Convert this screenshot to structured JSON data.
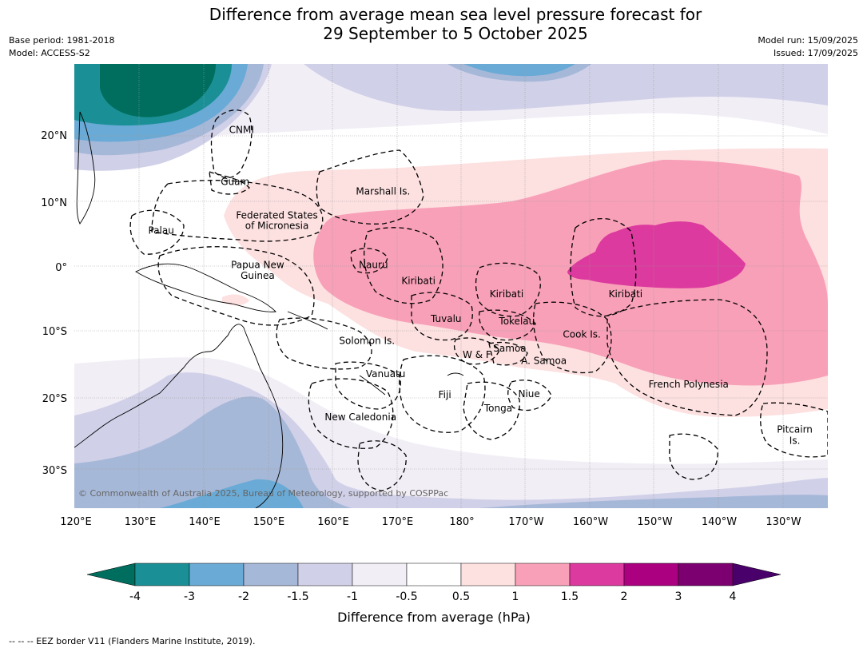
{
  "title": {
    "line1": "Difference from average mean sea level pressure forecast for",
    "line2": "29 September to 5 October 2025"
  },
  "meta": {
    "base_period": "Base period: 1981-2018",
    "model": "Model: ACCESS-S2",
    "model_run": "Model run: 15/09/2025",
    "issued": "Issued: 17/09/2025"
  },
  "map": {
    "lon_labels": [
      "120°E",
      "130°E",
      "140°E",
      "150°E",
      "160°E",
      "170°E",
      "180°",
      "170°W",
      "160°W",
      "150°W",
      "140°W",
      "130°W"
    ],
    "lat_labels": [
      "20°N",
      "10°N",
      "0°",
      "10°S",
      "20°S",
      "30°S"
    ],
    "copyright": "© Commonwealth of Australia 2025, Bureau of Meteorology, supported by COSPPac",
    "regions": [
      {
        "label": "CNMI",
        "lon": 145.5,
        "lat": 21
      },
      {
        "label": "Guam",
        "lon": 144.5,
        "lat": 13
      },
      {
        "label": "Marshall Is.",
        "lon": 167.5,
        "lat": 11.5
      },
      {
        "label": "Federated States",
        "lon": 151,
        "lat": 7.8
      },
      {
        "label": "of Micronesia",
        "lon": 151,
        "lat": 6.2
      },
      {
        "label": "Palau",
        "lon": 133,
        "lat": 5.5
      },
      {
        "label": "Papua New",
        "lon": 148,
        "lat": 0.2
      },
      {
        "label": "Guinea",
        "lon": 148,
        "lat": -1.5
      },
      {
        "label": "Nauru",
        "lon": 166,
        "lat": 0.2
      },
      {
        "label": "Kiribati",
        "lon": 173,
        "lat": -2.3
      },
      {
        "label": "Kiribati",
        "lon": -173.3,
        "lat": -4.3
      },
      {
        "label": "Kiribati",
        "lon": -154.8,
        "lat": -4.3
      },
      {
        "label": "Tuvalu",
        "lon": 177.3,
        "lat": -8.1
      },
      {
        "label": "Tokelau",
        "lon": -171.7,
        "lat": -8.5
      },
      {
        "label": "Cook Is.",
        "lon": -161.6,
        "lat": -10.5
      },
      {
        "label": "Solomon Is.",
        "lon": 165,
        "lat": -11.5
      },
      {
        "label": "Samoa",
        "lon": -172.8,
        "lat": -12.7
      },
      {
        "label": "W & F",
        "lon": -177.9,
        "lat": -13.7
      },
      {
        "label": "A. Samoa",
        "lon": -167.5,
        "lat": -14.6
      },
      {
        "label": "Vanuatu",
        "lon": 167.9,
        "lat": -16.6
      },
      {
        "label": "Fiji",
        "lon": 177.1,
        "lat": -19.8
      },
      {
        "label": "Niue",
        "lon": -169.8,
        "lat": -19.7
      },
      {
        "label": "Tonga",
        "lon": -174.6,
        "lat": -21.9
      },
      {
        "label": "French Polynesia",
        "lon": -145,
        "lat": -18.2
      },
      {
        "label": "New Caledonia",
        "lon": 164,
        "lat": -23.3
      },
      {
        "label": "Pitcairn",
        "lon": -128.5,
        "lat": -25.2
      },
      {
        "label": "Is.",
        "lon": -128.5,
        "lat": -26.9
      }
    ]
  },
  "colorbar": {
    "ticks": [
      "-4",
      "-3",
      "-2",
      "-1.5",
      "-1",
      "-0.5",
      "0.5",
      "1",
      "1.5",
      "2",
      "3",
      "4"
    ],
    "colors": [
      "#1a9096",
      "#6aaad6",
      "#a6b8d8",
      "#d0d0e8",
      "#f2eef6",
      "#ffffff",
      "#fde0e0",
      "#f8a0b8",
      "#dc3a9e",
      "#ab0080",
      "#7c0070"
    ],
    "under_color": "#006e5e",
    "over_color": "#4a006a",
    "label": "Difference from average (hPa)"
  },
  "footnote": "-- -- -- EEZ border V11 (Flanders Marine Institute, 2019)."
}
